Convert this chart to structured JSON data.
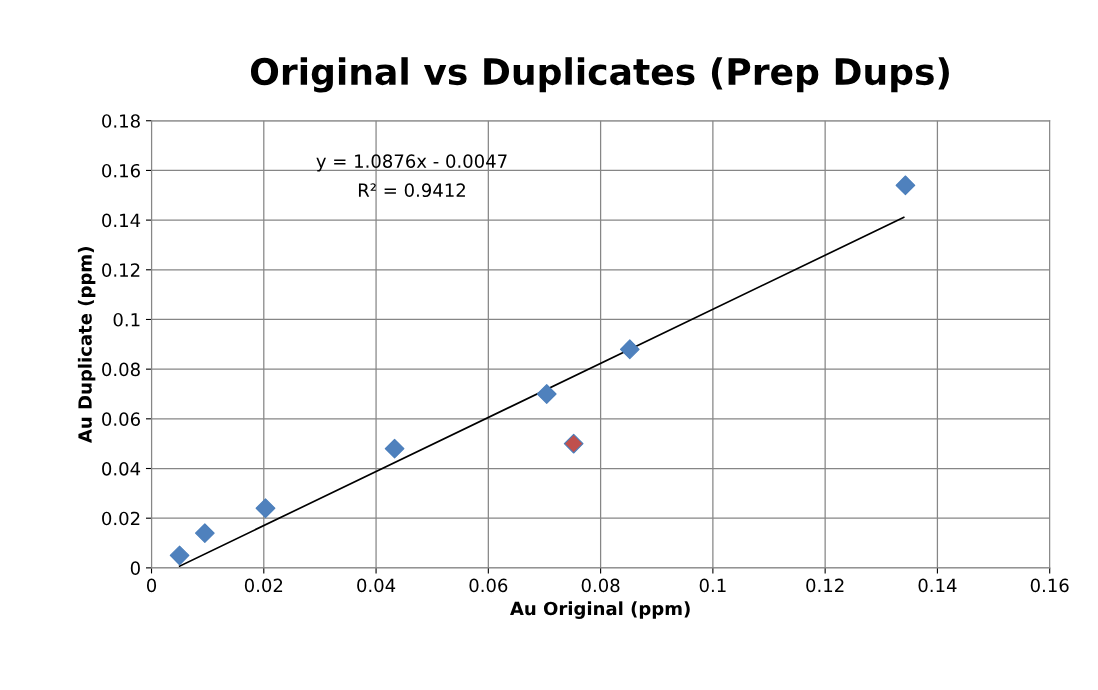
{
  "chart_data": {
    "type": "scatter",
    "title": "Original vs Duplicates (Prep Dups)",
    "xlabel": "Au Original (ppm)",
    "ylabel": "Au Duplicate (ppm)",
    "xlim": [
      0,
      0.16
    ],
    "xticks": [
      0,
      0.02,
      0.04,
      0.06,
      0.08,
      0.1,
      0.12,
      0.14,
      0.16
    ],
    "ylim": [
      0,
      0.18
    ],
    "yticks": [
      0,
      0.02,
      0.04,
      0.06,
      0.08,
      0.1,
      0.12,
      0.14,
      0.16,
      0.18
    ],
    "grid": true,
    "marker": "diamond",
    "series": [
      {
        "x": [
          0.005,
          0.0095,
          0.0203,
          0.0433,
          0.0704,
          0.0752,
          0.0852,
          0.1343
        ],
        "values": [
          0.005,
          0.014,
          0.024,
          0.048,
          0.07,
          0.05,
          0.088,
          0.154
        ],
        "colors": [
          "#4f81bd",
          "#4f81bd",
          "#4f81bd",
          "#4f81bd",
          "#4f81bd",
          "#c0504d",
          "#4f81bd",
          "#4f81bd"
        ]
      },
      {
        "type": "line",
        "x": [
          0.005,
          0.134
        ],
        "values": [
          0.0007,
          0.1411
        ],
        "color": "#000000",
        "marker": "none"
      }
    ],
    "annotations": [
      "y = 1.0876x - 0.0047",
      "R² = 0.9412"
    ]
  }
}
